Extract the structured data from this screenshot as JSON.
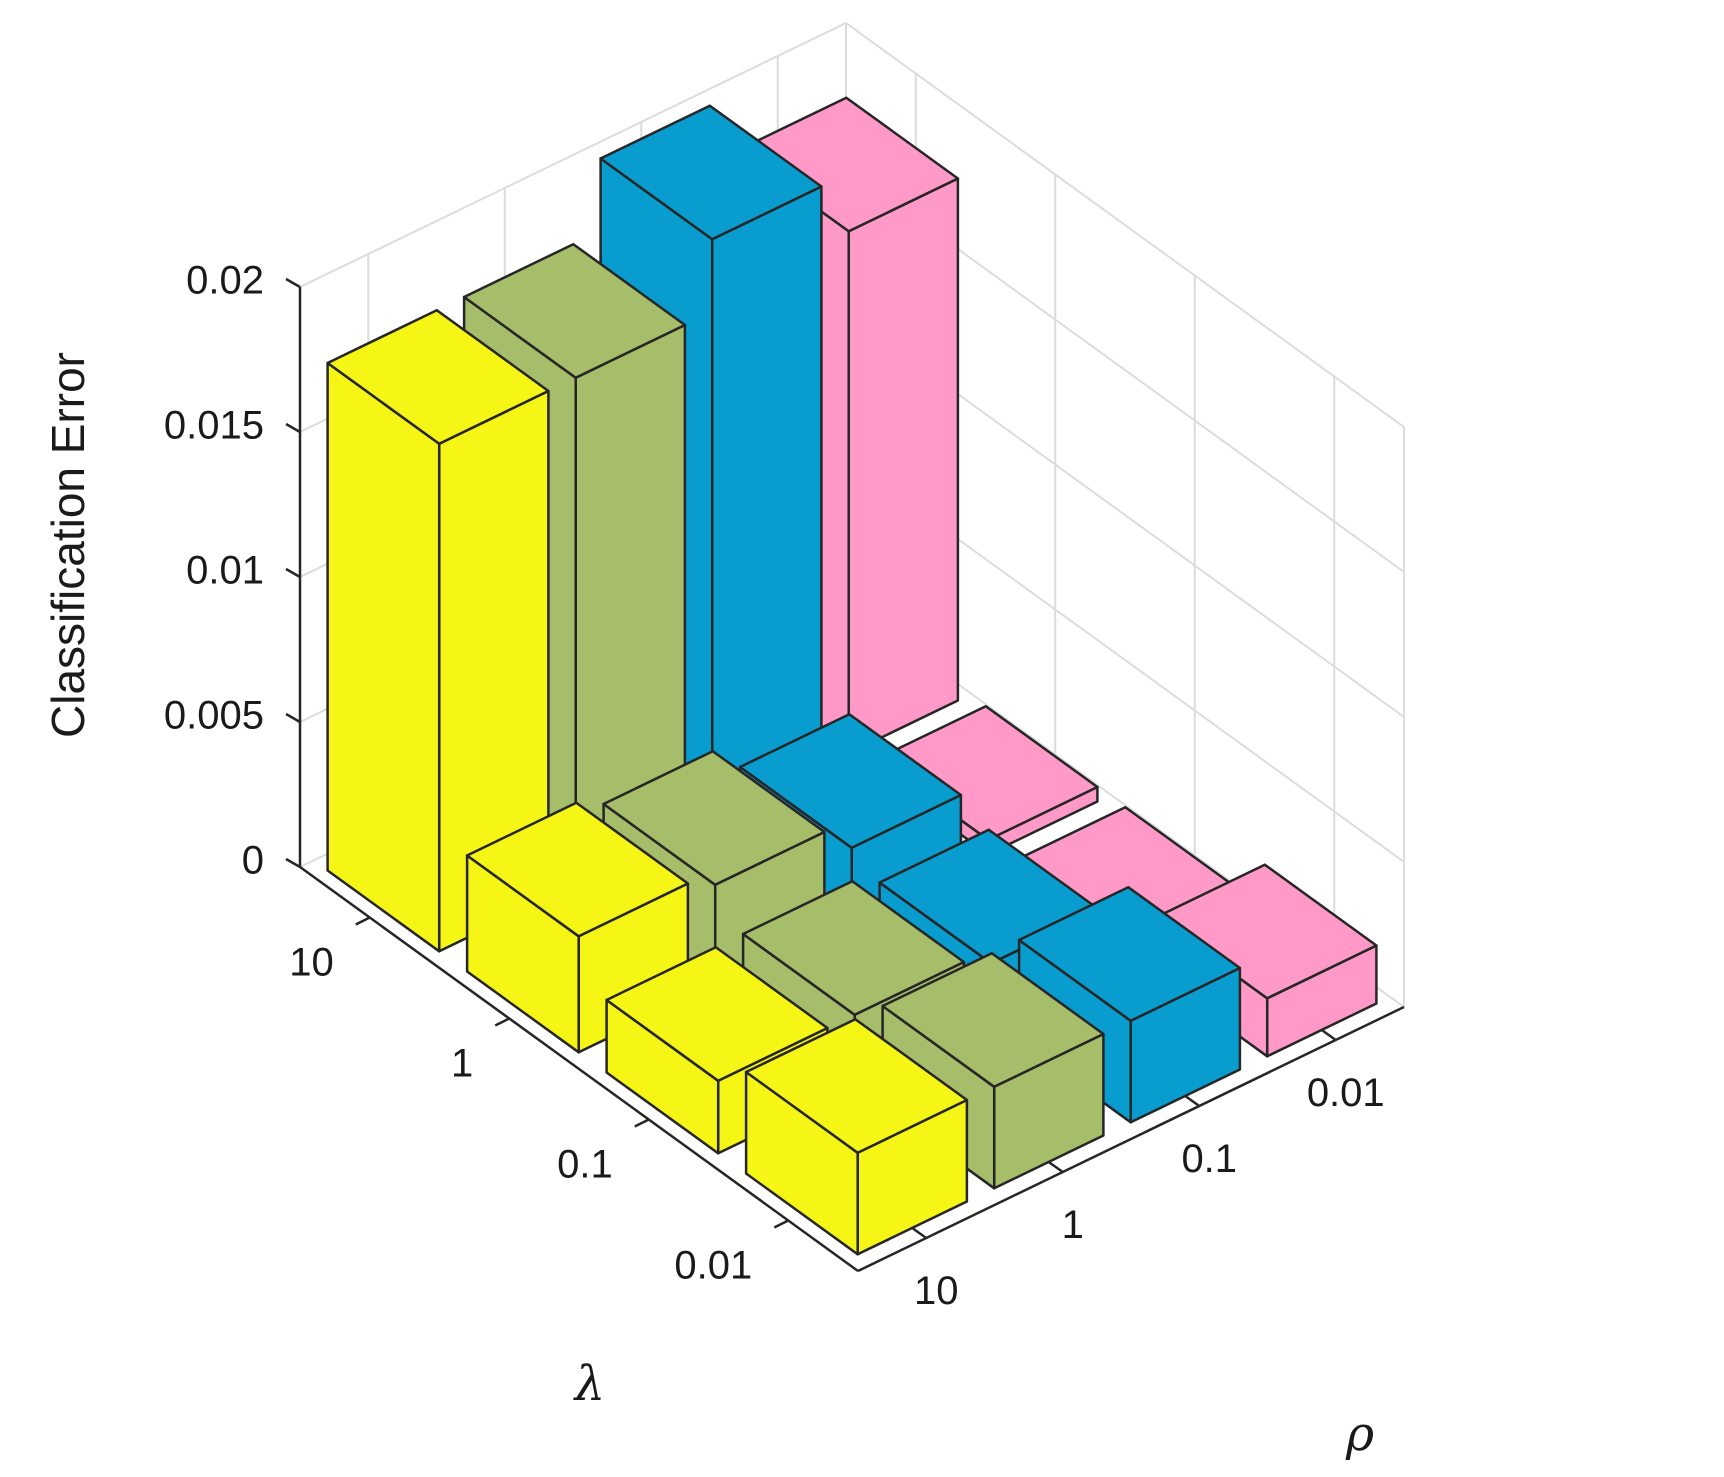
{
  "chart_data": {
    "type": "bar3d",
    "title": "",
    "zlabel": "Classification Error",
    "xlabel": "λ",
    "ylabel": "ρ",
    "zlim": [
      0,
      0.02
    ],
    "z_ticks": [
      "0",
      "0.005",
      "0.01",
      "0.015",
      "0.02"
    ],
    "lambda_categories": [
      "10",
      "1",
      "0.1",
      "0.01"
    ],
    "rho_categories": [
      "10",
      "1",
      "0.1",
      "0.01"
    ],
    "grid": true,
    "series": [
      {
        "rho": "10",
        "color": "#f5f516",
        "values": [
          0.0175,
          0.004,
          0.0025,
          0.0035
        ]
      },
      {
        "rho": "1",
        "color": "#a6bd6a",
        "values": [
          0.0175,
          0.0035,
          0.0025,
          0.0035
        ]
      },
      {
        "rho": "0.1",
        "color": "#099ccf",
        "values": [
          0.02,
          0.0025,
          0.002,
          0.0035
        ]
      },
      {
        "rho": "0.01",
        "color": "#ff9ac8",
        "values": [
          0.018,
          0.0005,
          0.0005,
          0.002
        ]
      }
    ]
  }
}
